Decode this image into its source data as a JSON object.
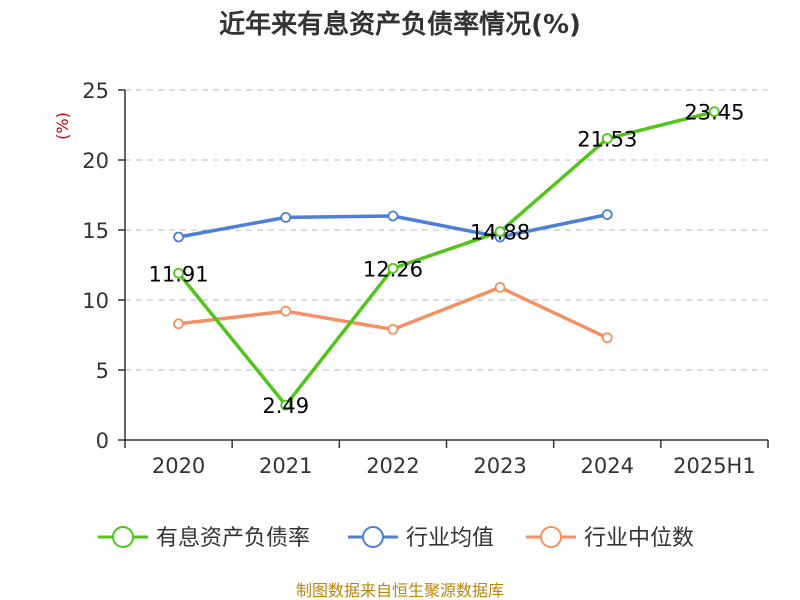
{
  "chart_data": {
    "type": "line",
    "title": "近年来有息资产负债率情况(%)",
    "ylabel": "(%)",
    "xlabel": "",
    "categories": [
      "2020",
      "2021",
      "2022",
      "2023",
      "2024",
      "2025H1"
    ],
    "ylim": [
      0,
      25
    ],
    "yticks": [
      "0",
      "5",
      "10",
      "15",
      "20",
      "25"
    ],
    "grid": true,
    "legend_position": "bottom",
    "series": [
      {
        "name": "有息资产负债率",
        "color": "#52c41a",
        "values": [
          11.91,
          2.49,
          12.26,
          14.88,
          21.53,
          23.45
        ],
        "labels": [
          "11.91",
          "2.49",
          "12.26",
          "14.88",
          "21.53",
          "23.45"
        ]
      },
      {
        "name": "行业均值",
        "color": "#4e7fd6",
        "values": [
          14.5,
          15.9,
          16.0,
          14.5,
          16.1,
          null
        ]
      },
      {
        "name": "行业中位数",
        "color": "#f59064",
        "values": [
          8.3,
          9.2,
          7.9,
          10.9,
          7.3,
          null
        ]
      }
    ],
    "source": "制图数据来自恒生聚源数据库",
    "colors": {
      "axis": "#333333",
      "grid": "#bbbbbb",
      "unit_label": "#cc0000",
      "source": "#b8860b"
    }
  }
}
